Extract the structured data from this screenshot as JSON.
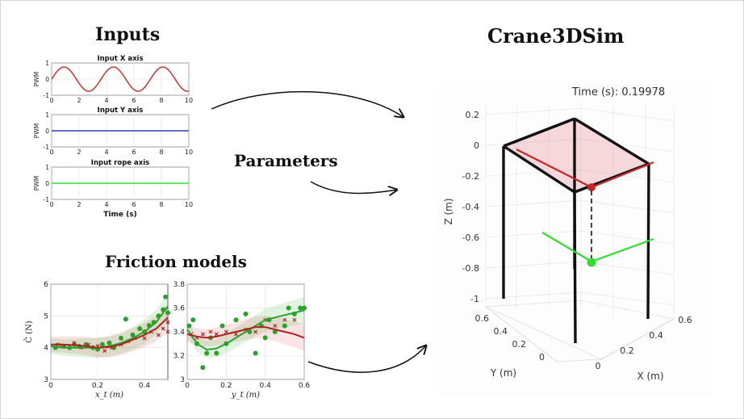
{
  "titles": {
    "inputs": "Inputs",
    "simulator": "Crane3DSim",
    "parameters": "Parameters",
    "friction": "Friction models"
  },
  "colors": {
    "x_signal": "#c62828",
    "y_signal": "#3040c0",
    "rope_signal": "#33dd33",
    "friction_green": "#2ca02c",
    "friction_red": "#b22222"
  },
  "chart_data": [
    {
      "type": "line",
      "title": "Input X axis",
      "ylabel": "PWM",
      "xlabel": "",
      "xlim": [
        0,
        10
      ],
      "ylim": [
        -1,
        1
      ],
      "xticks": [
        "0",
        "2",
        "4",
        "6",
        "8",
        "10"
      ],
      "yticks": [
        "1",
        "0",
        "-1"
      ],
      "series": [
        {
          "function": "sin",
          "amplitude": 0.75,
          "period": 3.6
        }
      ]
    },
    {
      "type": "line",
      "title": "Input Y axis",
      "ylabel": "PWM",
      "xlabel": "",
      "xlim": [
        0,
        10
      ],
      "ylim": [
        -1,
        1
      ],
      "xticks": [
        "0",
        "2",
        "4",
        "6",
        "8",
        "10"
      ],
      "yticks": [
        "1",
        "0",
        "-1"
      ],
      "series": [
        {
          "function": "constant",
          "value": 0
        }
      ]
    },
    {
      "type": "line",
      "title": "Input rope axis",
      "ylabel": "PWM",
      "xlabel": "Time (s)",
      "xlim": [
        0,
        10
      ],
      "ylim": [
        -1,
        1
      ],
      "xticks": [
        "0",
        "2",
        "4",
        "6",
        "8",
        "10"
      ],
      "yticks": [
        "1",
        "0",
        "-1"
      ],
      "series": [
        {
          "function": "constant",
          "value": 0
        }
      ]
    },
    {
      "type": "scatter",
      "ylabel": "Ĉ (N)",
      "xlabel": "x_t (m)",
      "xlim": [
        0,
        0.5
      ],
      "ylim": [
        3,
        6
      ],
      "xticks": [
        "0",
        "0.2",
        "0.4"
      ],
      "yticks": [
        "6",
        "5",
        "4",
        "3"
      ],
      "series": [
        {
          "marker": "dot",
          "color": "green",
          "x": [
            0.02,
            0.05,
            0.08,
            0.1,
            0.12,
            0.15,
            0.18,
            0.2,
            0.22,
            0.25,
            0.27,
            0.3,
            0.32,
            0.35,
            0.38,
            0.4,
            0.42,
            0.44,
            0.46,
            0.48,
            0.49,
            0.5
          ],
          "y": [
            4.0,
            4.05,
            4.0,
            4.1,
            4.05,
            4.1,
            4.0,
            3.95,
            4.1,
            4.15,
            4.0,
            4.3,
            4.9,
            4.4,
            4.6,
            4.5,
            4.7,
            4.8,
            5.0,
            5.2,
            5.6,
            5.1
          ]
        },
        {
          "marker": "x",
          "color": "red",
          "x": [
            0.03,
            0.06,
            0.1,
            0.13,
            0.16,
            0.2,
            0.23,
            0.26,
            0.3,
            0.33,
            0.36,
            0.4,
            0.43,
            0.46,
            0.48,
            0.5,
            0.5
          ],
          "y": [
            4.1,
            4.05,
            4.15,
            4.0,
            4.1,
            4.05,
            3.9,
            4.0,
            4.1,
            4.2,
            4.3,
            4.3,
            4.5,
            4.4,
            4.6,
            4.8,
            4.5
          ]
        },
        {
          "marker": "line",
          "color": "green",
          "x": [
            0,
            0.05,
            0.1,
            0.15,
            0.2,
            0.25,
            0.3,
            0.35,
            0.4,
            0.45,
            0.5
          ],
          "y": [
            4.05,
            4.0,
            4.0,
            4.0,
            4.0,
            4.05,
            4.15,
            4.3,
            4.5,
            4.8,
            5.3
          ]
        },
        {
          "marker": "line",
          "color": "red",
          "x": [
            0,
            0.05,
            0.1,
            0.15,
            0.2,
            0.25,
            0.3,
            0.35,
            0.4,
            0.45,
            0.5
          ],
          "y": [
            4.1,
            4.1,
            4.08,
            4.05,
            4.0,
            4.02,
            4.1,
            4.25,
            4.4,
            4.6,
            4.95
          ]
        }
      ]
    },
    {
      "type": "scatter",
      "ylabel": "",
      "xlabel": "y_t (m)",
      "xlim": [
        0,
        0.6
      ],
      "ylim": [
        3,
        3.8
      ],
      "xticks": [
        "0",
        "0.2",
        "0.4",
        "0.6"
      ],
      "yticks": [
        "3.8",
        "3.6",
        "3.4",
        "3.2",
        "3"
      ],
      "series": [
        {
          "marker": "dot",
          "color": "green",
          "x": [
            0.01,
            0.03,
            0.05,
            0.08,
            0.1,
            0.12,
            0.15,
            0.18,
            0.2,
            0.25,
            0.3,
            0.32,
            0.35,
            0.38,
            0.4,
            0.42,
            0.45,
            0.5,
            0.52,
            0.55,
            0.58,
            0.6
          ],
          "y": [
            3.45,
            3.5,
            3.3,
            3.1,
            3.22,
            3.35,
            3.22,
            3.45,
            3.3,
            3.5,
            3.55,
            3.4,
            3.22,
            3.45,
            3.35,
            3.5,
            3.4,
            3.45,
            3.6,
            3.55,
            3.6,
            3.6
          ]
        },
        {
          "marker": "x",
          "color": "red",
          "x": [
            0.02,
            0.05,
            0.08,
            0.12,
            0.15,
            0.2,
            0.25,
            0.3,
            0.35,
            0.4,
            0.45,
            0.5,
            0.55
          ],
          "y": [
            3.38,
            3.35,
            3.38,
            3.4,
            3.38,
            3.4,
            3.38,
            3.42,
            3.4,
            3.5,
            3.45,
            3.5,
            3.5
          ]
        },
        {
          "marker": "line",
          "color": "green",
          "x": [
            0,
            0.05,
            0.1,
            0.15,
            0.2,
            0.25,
            0.3,
            0.35,
            0.4,
            0.45,
            0.5,
            0.55,
            0.6
          ],
          "y": [
            3.42,
            3.3,
            3.25,
            3.26,
            3.3,
            3.35,
            3.4,
            3.45,
            3.5,
            3.52,
            3.54,
            3.56,
            3.58
          ]
        },
        {
          "marker": "line",
          "color": "red",
          "x": [
            0,
            0.05,
            0.1,
            0.15,
            0.2,
            0.25,
            0.3,
            0.35,
            0.4,
            0.45,
            0.5,
            0.55,
            0.6
          ],
          "y": [
            3.38,
            3.36,
            3.35,
            3.36,
            3.38,
            3.4,
            3.42,
            3.44,
            3.44,
            3.42,
            3.4,
            3.38,
            3.35
          ]
        }
      ]
    },
    {
      "type": "3d-plot",
      "title": "Time (s): 0.19978",
      "zlabel": "Z (m)",
      "ylabel": "Y (m)",
      "xlabel": "X (m)",
      "zticks": [
        "0.2",
        "0",
        "-0.2",
        "-0.4",
        "-0.6",
        "-0.8",
        "-1"
      ],
      "yticks": [
        "0.6",
        "0.4",
        "0.2",
        "0"
      ],
      "xticks": [
        "0",
        "0.2",
        "0.4",
        "0.6"
      ]
    }
  ]
}
